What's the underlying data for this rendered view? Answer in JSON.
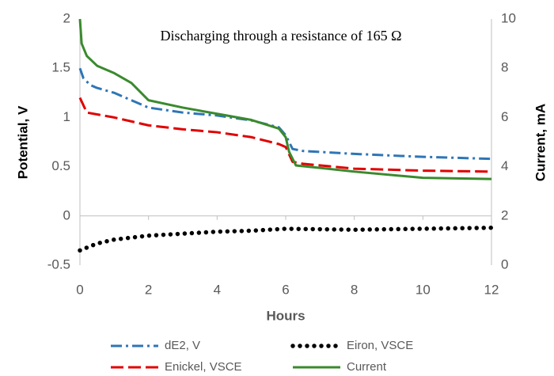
{
  "chart_data": {
    "type": "line",
    "title": "Discharging through a resistance of 165 Ω",
    "x_label": "Hours",
    "y_label": "Potential, V",
    "y2_label": "Current, mA",
    "xlim": [
      0,
      12
    ],
    "xticks": [
      0,
      2,
      4,
      6,
      8,
      10,
      12
    ],
    "ylim": [
      -0.5,
      2
    ],
    "yticks": [
      -0.5,
      0,
      0.5,
      1,
      1.5,
      2
    ],
    "y2lim": [
      0,
      10
    ],
    "y2ticks": [
      0,
      2,
      4,
      6,
      8,
      10
    ],
    "grid": false,
    "legend": "bottom",
    "series": [
      {
        "name": "dE2, V",
        "color": "#2e75b6",
        "style": "dashdot",
        "x": [
          0,
          0.1,
          0.3,
          0.5,
          1,
          2,
          3,
          4,
          5,
          5.8,
          6,
          6.2,
          6.5,
          8,
          10,
          12
        ],
        "values": [
          1.5,
          1.4,
          1.33,
          1.3,
          1.25,
          1.1,
          1.05,
          1.02,
          0.97,
          0.9,
          0.82,
          0.68,
          0.66,
          0.63,
          0.6,
          0.58
        ]
      },
      {
        "name": "Eiron, VSCE",
        "color": "#000000",
        "style": "dotted",
        "x": [
          0,
          0.5,
          1,
          2,
          3,
          4,
          5,
          6,
          8,
          10,
          12
        ],
        "values": [
          -0.35,
          -0.28,
          -0.24,
          -0.2,
          -0.18,
          -0.16,
          -0.15,
          -0.13,
          -0.14,
          -0.13,
          -0.12
        ]
      },
      {
        "name": "Enickel, VSCE",
        "color": "#e00000",
        "style": "dashed",
        "x": [
          0,
          0.2,
          1,
          2,
          3,
          4,
          5,
          5.8,
          6,
          6.2,
          6.5,
          8,
          10,
          12
        ],
        "values": [
          1.2,
          1.05,
          1.0,
          0.92,
          0.88,
          0.85,
          0.8,
          0.73,
          0.7,
          0.55,
          0.53,
          0.48,
          0.46,
          0.45
        ]
      },
      {
        "name": "Current",
        "color": "#3a8a2e",
        "style": "solid",
        "axis": "y2",
        "x": [
          0,
          0.05,
          0.2,
          0.5,
          1,
          1.5,
          2,
          3,
          4,
          5,
          5.8,
          6,
          6.1,
          6.3,
          7,
          8,
          10,
          12
        ],
        "values": [
          10,
          9,
          8.5,
          8.1,
          7.8,
          7.4,
          6.7,
          6.4,
          6.15,
          5.9,
          5.55,
          5.2,
          4.6,
          4.05,
          3.95,
          3.8,
          3.55,
          3.5
        ]
      }
    ]
  }
}
